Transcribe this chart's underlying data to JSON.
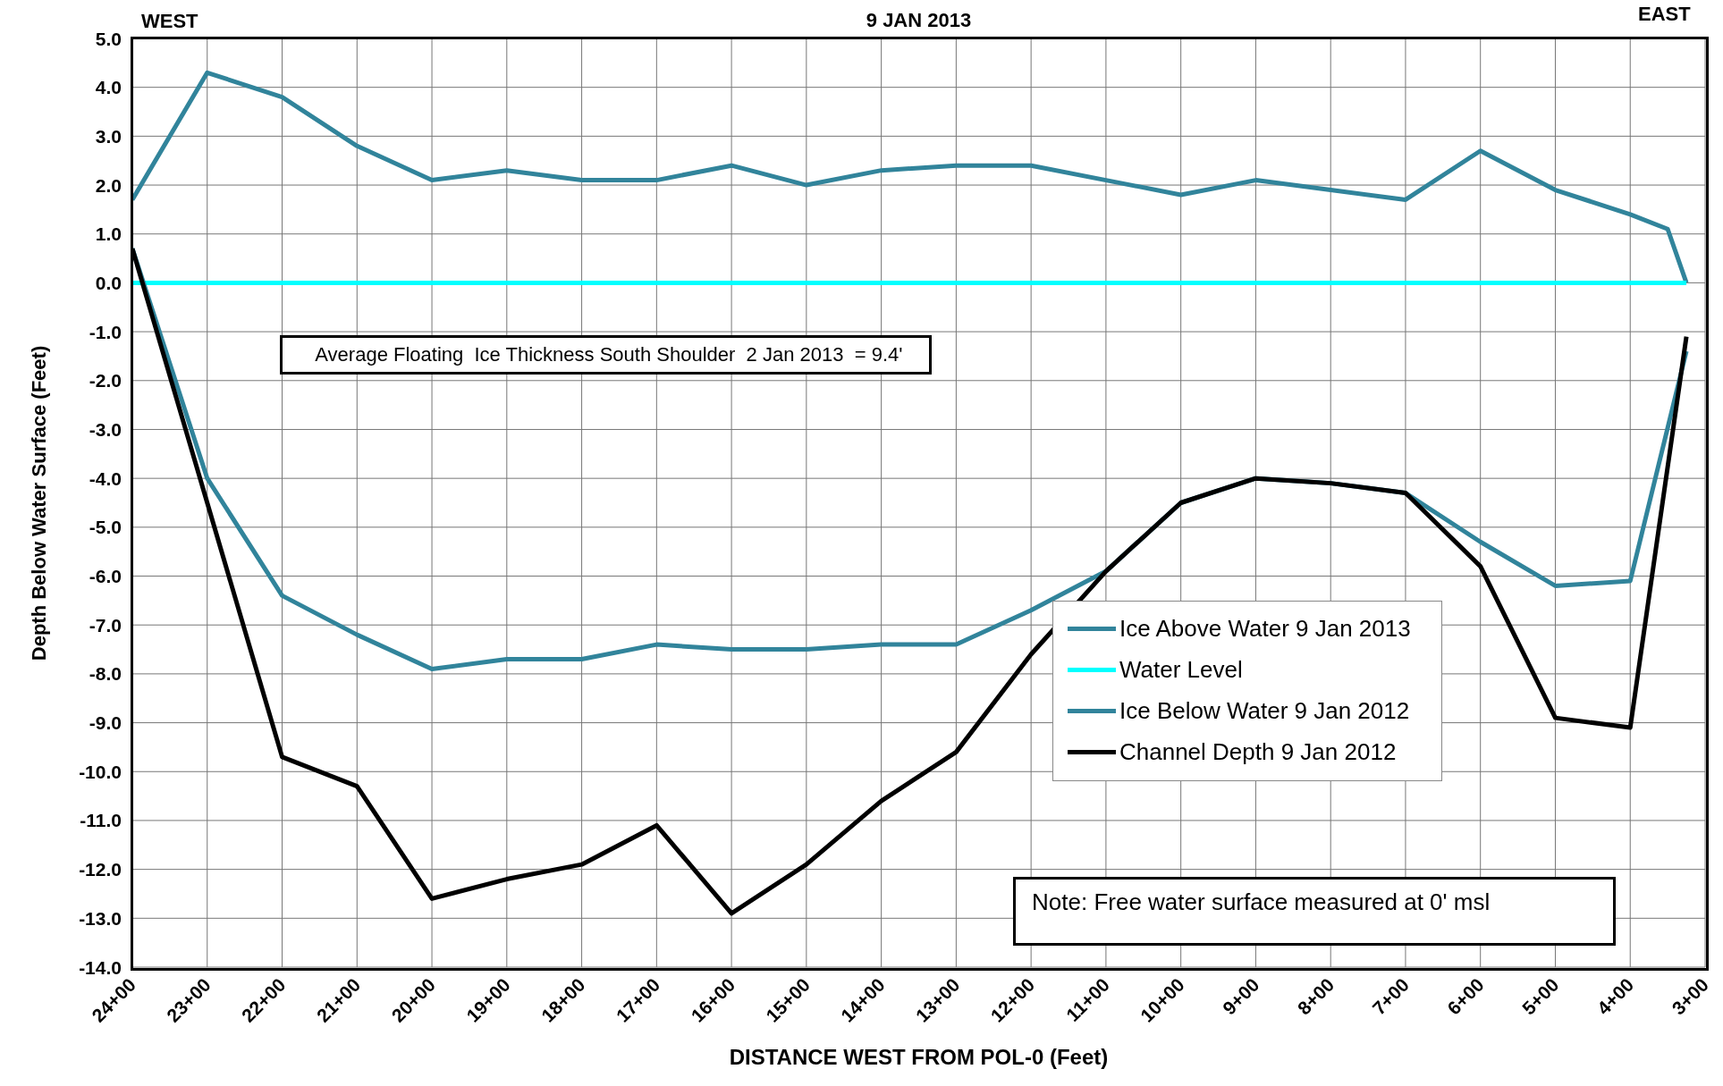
{
  "chart_data": {
    "type": "line",
    "title": "9 JAN 2013",
    "xlabel": "DISTANCE WEST FROM POL-0 (Feet)",
    "ylabel": "Depth Below Water Surface (Feet)",
    "annotations": [
      "WEST",
      "EAST",
      "Average Floating  Ice Thickness South Shoulder  2 Jan 2013  = 9.4'",
      "Note: Free water surface measured at 0' msl"
    ],
    "categories": [
      "24+00",
      null,
      null,
      null,
      "23+00",
      null,
      null,
      null,
      "22+00",
      null,
      null,
      null,
      "21+00",
      null,
      null,
      null,
      "20+00",
      null,
      null,
      null,
      "19+00",
      null,
      null,
      null,
      "18+00",
      null,
      null,
      null,
      "17+00",
      null,
      null,
      null,
      "16+00",
      null,
      null,
      null,
      "15+00",
      null,
      null,
      null,
      "14+00",
      null,
      null,
      null,
      "13+00",
      null,
      null,
      null,
      "12+00",
      null,
      null,
      null,
      "11+00",
      null,
      null,
      null,
      "10+00",
      null,
      null,
      null,
      "9+00",
      null,
      null,
      null,
      "8+00",
      null,
      null,
      null,
      "7+00",
      null,
      null,
      null,
      "6+00",
      null,
      null,
      null,
      "5+00",
      null,
      null,
      null,
      "4+00",
      null,
      null,
      null,
      "3+00"
    ],
    "ylim": [
      -14,
      5
    ],
    "yticks": [
      {
        "value": 5,
        "label": "5.0"
      },
      {
        "value": 4,
        "label": "4.0"
      },
      {
        "value": 3,
        "label": "3.0"
      },
      {
        "value": 2,
        "label": "2.0"
      },
      {
        "value": 1,
        "label": "1.0"
      },
      {
        "value": 0,
        "label": "0.0"
      },
      {
        "value": -1,
        "label": "-1.0"
      },
      {
        "value": -2,
        "label": "-2.0"
      },
      {
        "value": -3,
        "label": "-3.0"
      },
      {
        "value": -4,
        "label": "-4.0"
      },
      {
        "value": -5,
        "label": "-5.0"
      },
      {
        "value": -6,
        "label": "-6.0"
      },
      {
        "value": -7,
        "label": "-7.0"
      },
      {
        "value": -8,
        "label": "-8.0"
      },
      {
        "value": -9,
        "label": "-9.0"
      },
      {
        "value": -10,
        "label": "-10.0"
      },
      {
        "value": -11,
        "label": "-11.0"
      },
      {
        "value": -12,
        "label": "-12.0"
      },
      {
        "value": -13,
        "label": "-13.0"
      },
      {
        "value": -14,
        "label": "-14.0"
      }
    ],
    "grid": true,
    "legend": "right",
    "series": [
      {
        "name": "Ice Above Water 9 Jan 2013",
        "color": "#31849b",
        "values": [
          1.7,
          null,
          null,
          null,
          4.3,
          null,
          null,
          null,
          3.8,
          null,
          null,
          null,
          2.8,
          null,
          null,
          null,
          2.1,
          null,
          null,
          null,
          2.3,
          null,
          null,
          null,
          2.1,
          null,
          null,
          null,
          2.1,
          null,
          null,
          null,
          2.4,
          null,
          null,
          null,
          2.0,
          null,
          null,
          null,
          2.3,
          null,
          null,
          null,
          2.4,
          null,
          null,
          null,
          2.4,
          null,
          null,
          null,
          2.1,
          null,
          null,
          null,
          1.8,
          null,
          null,
          null,
          2.1,
          null,
          null,
          null,
          1.9,
          null,
          null,
          null,
          1.7,
          null,
          null,
          null,
          2.7,
          null,
          null,
          null,
          1.9,
          null,
          null,
          null,
          1.4,
          null,
          1.1,
          0,
          null
        ]
      },
      {
        "name": "Water Level",
        "color": "#00ffff",
        "values": [
          0,
          null,
          null,
          null,
          null,
          null,
          null,
          null,
          null,
          null,
          null,
          null,
          null,
          null,
          null,
          null,
          null,
          null,
          null,
          null,
          null,
          null,
          null,
          null,
          null,
          null,
          null,
          null,
          null,
          null,
          null,
          null,
          null,
          null,
          null,
          null,
          null,
          null,
          null,
          null,
          null,
          null,
          null,
          null,
          null,
          null,
          null,
          null,
          null,
          null,
          null,
          null,
          null,
          null,
          null,
          null,
          null,
          null,
          null,
          null,
          null,
          null,
          null,
          null,
          null,
          null,
          null,
          null,
          null,
          null,
          null,
          null,
          null,
          null,
          null,
          null,
          null,
          null,
          null,
          null,
          null,
          null,
          null,
          0,
          null
        ]
      },
      {
        "name": "Ice Below Water 9 Jan 2012",
        "color": "#31849b",
        "values": [
          0.7,
          null,
          null,
          null,
          -4.0,
          null,
          null,
          null,
          -6.4,
          null,
          null,
          null,
          -7.2,
          null,
          null,
          null,
          -7.9,
          null,
          null,
          null,
          -7.7,
          null,
          null,
          null,
          -7.7,
          null,
          null,
          null,
          -7.4,
          null,
          null,
          null,
          -7.5,
          null,
          null,
          null,
          -7.5,
          null,
          null,
          null,
          -7.4,
          null,
          null,
          null,
          -7.4,
          null,
          null,
          null,
          -6.7,
          null,
          null,
          null,
          -5.9,
          null,
          null,
          null,
          -4.5,
          null,
          null,
          null,
          -4.0,
          null,
          null,
          null,
          -4.1,
          null,
          null,
          null,
          -4.3,
          null,
          null,
          null,
          -5.3,
          null,
          null,
          null,
          -6.2,
          null,
          null,
          null,
          -6.1,
          null,
          null,
          -1.4,
          null
        ]
      },
      {
        "name": "Channel Depth 9 Jan 2012",
        "color": "#000000",
        "values": [
          0.7,
          null,
          null,
          null,
          -4.5,
          null,
          null,
          null,
          -9.7,
          null,
          null,
          null,
          -10.3,
          null,
          null,
          null,
          -12.6,
          null,
          null,
          null,
          -12.2,
          null,
          null,
          null,
          -11.9,
          null,
          null,
          null,
          -11.1,
          null,
          null,
          null,
          -12.9,
          null,
          null,
          null,
          -11.9,
          null,
          null,
          null,
          -10.6,
          null,
          null,
          null,
          -9.6,
          null,
          null,
          null,
          -7.6,
          null,
          null,
          null,
          -5.9,
          null,
          null,
          null,
          -4.5,
          null,
          null,
          null,
          -4.0,
          null,
          null,
          null,
          -4.1,
          null,
          null,
          null,
          -4.3,
          null,
          null,
          null,
          -5.8,
          null,
          null,
          null,
          -8.9,
          null,
          null,
          null,
          -9.1,
          null,
          null,
          -1.1,
          null
        ]
      }
    ]
  }
}
